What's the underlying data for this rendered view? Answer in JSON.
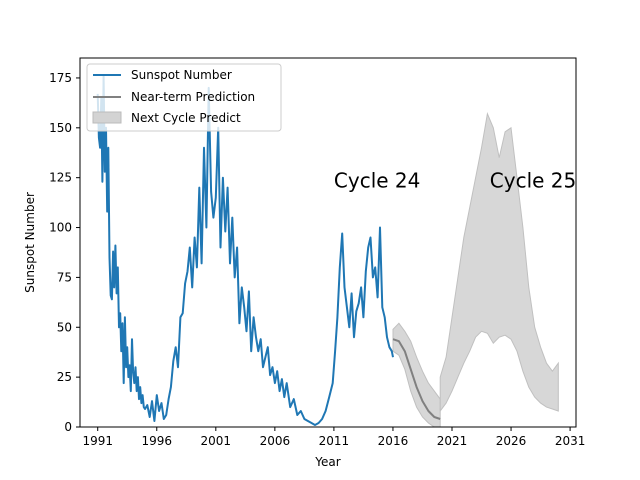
{
  "chart_data": {
    "type": "line",
    "xlabel": "Year",
    "ylabel": "Sunspot Number",
    "xlim": [
      1989.5,
      2031.5
    ],
    "ylim": [
      0,
      185
    ],
    "xticks": [
      1991,
      1996,
      2001,
      2006,
      2011,
      2016,
      2021,
      2026,
      2031
    ],
    "yticks": [
      0,
      25,
      50,
      75,
      100,
      125,
      150,
      175
    ],
    "grid": false,
    "legend_position": "top-left",
    "legend": [
      {
        "label": "Sunspot Number",
        "kind": "line",
        "color": "#1f77b4"
      },
      {
        "label": "Near-term Prediction",
        "kind": "line",
        "color": "#808080"
      },
      {
        "label": "Next Cycle Predict",
        "kind": "band",
        "color": "#d3d3d3"
      }
    ],
    "annotations": [
      {
        "text": "Cycle 24",
        "x": 2011,
        "y": 120
      },
      {
        "text": "Cycle 25",
        "x": 2024.2,
        "y": 120
      }
    ],
    "series": [
      {
        "name": "Sunspot Number",
        "color": "#1f77b4",
        "x": [
          1991.0,
          1991.1,
          1991.2,
          1991.3,
          1991.4,
          1991.5,
          1991.6,
          1991.7,
          1991.8,
          1991.9,
          1992.0,
          1992.1,
          1992.2,
          1992.3,
          1992.4,
          1992.5,
          1992.6,
          1992.7,
          1992.8,
          1992.9,
          1993.0,
          1993.1,
          1993.2,
          1993.3,
          1993.4,
          1993.5,
          1993.6,
          1993.7,
          1993.8,
          1993.9,
          1994.0,
          1994.1,
          1994.2,
          1994.3,
          1994.4,
          1994.5,
          1994.6,
          1994.7,
          1994.8,
          1994.9,
          1995.0,
          1995.2,
          1995.4,
          1995.6,
          1995.8,
          1996.0,
          1996.2,
          1996.4,
          1996.6,
          1996.8,
          1997.0,
          1997.2,
          1997.4,
          1997.6,
          1997.8,
          1998.0,
          1998.2,
          1998.4,
          1998.6,
          1998.8,
          1999.0,
          1999.2,
          1999.4,
          1999.6,
          1999.8,
          2000.0,
          2000.2,
          2000.4,
          2000.6,
          2000.8,
          2001.0,
          2001.2,
          2001.4,
          2001.6,
          2001.8,
          2002.0,
          2002.2,
          2002.4,
          2002.6,
          2002.8,
          2003.0,
          2003.2,
          2003.4,
          2003.6,
          2003.8,
          2004.0,
          2004.2,
          2004.4,
          2004.6,
          2004.8,
          2005.0,
          2005.2,
          2005.4,
          2005.6,
          2005.8,
          2006.0,
          2006.2,
          2006.4,
          2006.6,
          2006.8,
          2007.0,
          2007.3,
          2007.6,
          2007.9,
          2008.2,
          2008.5,
          2008.8,
          2009.1,
          2009.4,
          2009.7,
          2010.0,
          2010.3,
          2010.6,
          2010.9,
          2011.1,
          2011.3,
          2011.5,
          2011.7,
          2011.9,
          2012.1,
          2012.3,
          2012.5,
          2012.7,
          2012.9,
          2013.1,
          2013.3,
          2013.5,
          2013.7,
          2013.9,
          2014.1,
          2014.3,
          2014.5,
          2014.7,
          2014.9,
          2015.1,
          2015.3,
          2015.5,
          2015.7,
          2015.9,
          2016.0
        ],
        "y": [
          167,
          145,
          140,
          165,
          123,
          176,
          128,
          150,
          108,
          140,
          85,
          66,
          64,
          88,
          70,
          91,
          67,
          80,
          50,
          57,
          38,
          52,
          22,
          55,
          30,
          40,
          25,
          31,
          18,
          44,
          28,
          22,
          30,
          18,
          25,
          14,
          20,
          12,
          16,
          10,
          9,
          11,
          5,
          13,
          3,
          16,
          8,
          12,
          4,
          6,
          14,
          20,
          33,
          40,
          30,
          55,
          57,
          72,
          78,
          90,
          70,
          95,
          80,
          120,
          82,
          140,
          100,
          170,
          118,
          105,
          115,
          150,
          90,
          125,
          98,
          120,
          82,
          105,
          75,
          90,
          52,
          70,
          60,
          48,
          68,
          38,
          55,
          45,
          38,
          44,
          30,
          35,
          40,
          26,
          30,
          22,
          28,
          18,
          24,
          15,
          22,
          10,
          14,
          6,
          8,
          4,
          3,
          2,
          1,
          2,
          4,
          8,
          15,
          22,
          38,
          55,
          80,
          97,
          70,
          60,
          50,
          67,
          45,
          58,
          62,
          70,
          55,
          78,
          90,
          95,
          75,
          80,
          65,
          100,
          60,
          55,
          45,
          40,
          38,
          35
        ]
      },
      {
        "name": "Near-term Prediction",
        "color": "#808080",
        "x": [
          2016.0,
          2016.5,
          2017.0,
          2017.5,
          2018.0,
          2018.5,
          2019.0,
          2019.5,
          2020.0
        ],
        "y": [
          44,
          43,
          38,
          29,
          20,
          13,
          8,
          5,
          4
        ]
      }
    ],
    "bands": [
      {
        "name": "Near-term Prediction",
        "color": "#d3d3d3",
        "x": [
          2016.0,
          2016.5,
          2017.0,
          2017.5,
          2018.0,
          2018.5,
          2019.0,
          2019.5,
          2020.0
        ],
        "upper": [
          49,
          52,
          48,
          43,
          35,
          28,
          22,
          18,
          14
        ],
        "lower": [
          38,
          36,
          29,
          18,
          10,
          5,
          2,
          0,
          0
        ]
      },
      {
        "name": "Next Cycle Predict",
        "color": "#d3d3d3",
        "x": [
          2020.0,
          2020.5,
          2021.0,
          2021.5,
          2022.0,
          2022.5,
          2023.0,
          2023.5,
          2024.0,
          2024.5,
          2025.0,
          2025.5,
          2026.0,
          2026.5,
          2027.0,
          2027.5,
          2028.0,
          2028.5,
          2029.0,
          2029.5,
          2030.0
        ],
        "upper": [
          25,
          35,
          55,
          75,
          95,
          110,
          125,
          140,
          157,
          150,
          135,
          148,
          150,
          125,
          100,
          70,
          50,
          40,
          32,
          28,
          32
        ],
        "lower": [
          8,
          12,
          18,
          25,
          32,
          38,
          45,
          48,
          47,
          42,
          45,
          46,
          44,
          38,
          28,
          20,
          15,
          12,
          10,
          9,
          8
        ]
      }
    ]
  }
}
